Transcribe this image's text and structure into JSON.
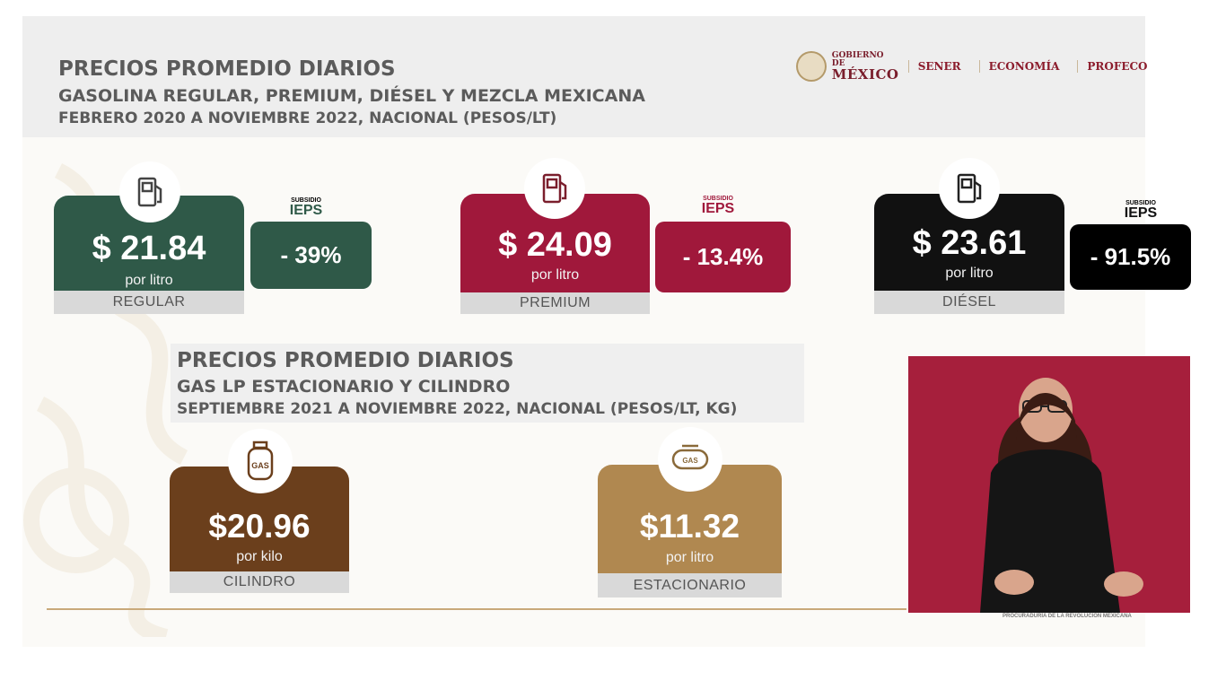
{
  "header": {
    "title": "PRECIOS PROMEDIO DIARIOS",
    "subtitle": "GASOLINA REGULAR, PREMIUM, DIÉSEL Y MEZCLA MEXICANA",
    "period": "FEBRERO 2020 A NOVIEMBRE 2022, NACIONAL (PESOS/LT)"
  },
  "logos": {
    "gob_small": "GOBIERNO DE",
    "gob_big": "MÉXICO",
    "agencies": [
      "SENER",
      "ECONOMÍA",
      "PROFECO"
    ]
  },
  "fuels": [
    {
      "price": "$ 21.84",
      "unit": "por litro",
      "label": "REGULAR",
      "subsidy_small": "SUBSIDIO",
      "subsidy_big": "IEPS",
      "subsidy": "- 39%",
      "color": "#2f5948",
      "icon": "fuel-pump-icon"
    },
    {
      "price": "$ 24.09",
      "unit": "por litro",
      "label": "PREMIUM",
      "subsidy_small": "SUBSIDIO",
      "subsidy_big": "IEPS",
      "subsidy": "- 13.4%",
      "color": "#a0183b",
      "icon": "fuel-pump-icon"
    },
    {
      "price": "$ 23.61",
      "unit": "por litro",
      "label": "DIÉSEL",
      "subsidy_small": "SUBSIDIO",
      "subsidy_big": "IEPS",
      "subsidy": "- 91.5%",
      "color": "#111111",
      "icon": "fuel-pump-icon"
    }
  ],
  "lp": {
    "title": "PRECIOS PROMEDIO DIARIOS",
    "subtitle": "GAS LP ESTACIONARIO Y CILINDRO",
    "period": "SEPTIEMBRE 2021 A NOVIEMBRE 2022, NACIONAL (PESOS/LT, KG)",
    "items": [
      {
        "price": "$20.96",
        "unit": "por kilo",
        "label": "CILINDRO",
        "icon_text": "GAS",
        "color": "#6b3f1c",
        "icon": "gas-cylinder-icon"
      },
      {
        "price": "$11.32",
        "unit": "por litro",
        "label": "ESTACIONARIO",
        "icon_text": "GAS",
        "color": "#b08850",
        "icon": "gas-tank-icon"
      }
    ]
  },
  "footer_caption": "PROCURADURÍA DE LA REVOLUCIÓN MEXICANA"
}
